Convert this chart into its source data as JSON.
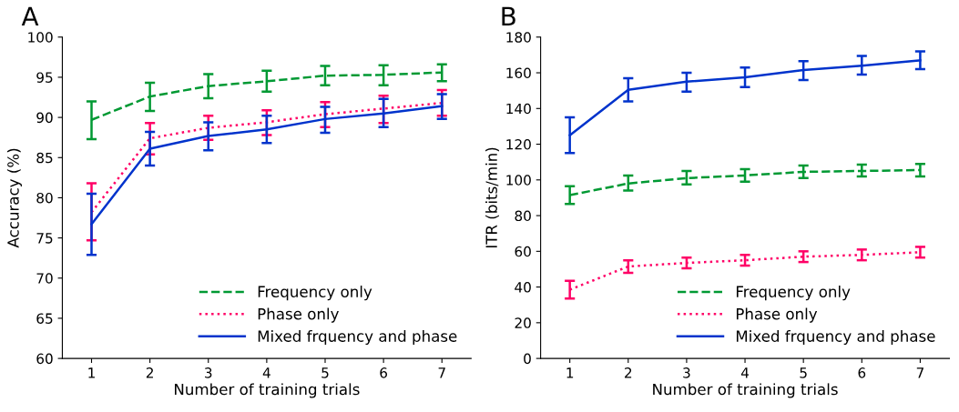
{
  "chart_data": [
    {
      "type": "line",
      "title": "A",
      "xlabel": "Number of training trials",
      "ylabel": "Accuracy (%)",
      "x": [
        1,
        2,
        3,
        4,
        5,
        6,
        7
      ],
      "xlim": [
        0.5,
        7.5
      ],
      "xticks": [
        1,
        2,
        3,
        4,
        5,
        6,
        7
      ],
      "ylim": [
        60,
        100
      ],
      "yticks": [
        60,
        65,
        70,
        75,
        80,
        85,
        90,
        95,
        100
      ],
      "grid": false,
      "legend": "bottom right",
      "marker": "none",
      "series": [
        {
          "name": "Frequency only",
          "color": "#009933",
          "line_style": "dashed",
          "values": [
            89.7,
            92.6,
            93.9,
            94.5,
            95.2,
            95.3,
            95.6
          ],
          "errors": [
            [
              87.3,
              92.0
            ],
            [
              90.8,
              94.3
            ],
            [
              92.4,
              95.4
            ],
            [
              93.2,
              95.8
            ],
            [
              94.0,
              96.4
            ],
            [
              94.0,
              96.5
            ],
            [
              94.5,
              96.6
            ]
          ]
        },
        {
          "name": "Phase only",
          "color": "#ff0066",
          "line_style": "dotted",
          "values": [
            78.2,
            87.4,
            88.7,
            89.4,
            90.4,
            91.1,
            91.8
          ],
          "errors": [
            [
              74.7,
              81.8
            ],
            [
              85.4,
              89.3
            ],
            [
              87.2,
              90.2
            ],
            [
              87.8,
              90.9
            ],
            [
              88.8,
              91.9
            ],
            [
              89.3,
              92.7
            ],
            [
              90.2,
              93.4
            ]
          ]
        },
        {
          "name": "Mixed frquency and phase",
          "color": "#0033cc",
          "line_style": "solid",
          "values": [
            76.7,
            86.1,
            87.7,
            88.5,
            89.8,
            90.5,
            91.4
          ],
          "errors": [
            [
              72.9,
              80.5
            ],
            [
              84.0,
              88.2
            ],
            [
              85.9,
              89.4
            ],
            [
              86.8,
              90.2
            ],
            [
              88.1,
              91.3
            ],
            [
              88.8,
              92.3
            ],
            [
              89.8,
              92.9
            ]
          ]
        }
      ]
    },
    {
      "type": "line",
      "title": "B",
      "xlabel": "Number of training trials",
      "ylabel": "ITR (bits/min)",
      "x": [
        1,
        2,
        3,
        4,
        5,
        6,
        7
      ],
      "xlim": [
        0.5,
        7.5
      ],
      "xticks": [
        1,
        2,
        3,
        4,
        5,
        6,
        7
      ],
      "ylim": [
        0,
        180
      ],
      "yticks": [
        0,
        20,
        40,
        60,
        80,
        100,
        120,
        140,
        160,
        180
      ],
      "grid": false,
      "legend": "bottom right",
      "marker": "none",
      "series": [
        {
          "name": "Frequency only",
          "color": "#009933",
          "line_style": "dashed",
          "values": [
            91.5,
            98,
            101,
            102.5,
            104.5,
            105,
            105.5
          ],
          "errors": [
            [
              86.5,
              96.5
            ],
            [
              94,
              102.5
            ],
            [
              97.5,
              105
            ],
            [
              99,
              106
            ],
            [
              101,
              108
            ],
            [
              102,
              108.5
            ],
            [
              102,
              109
            ]
          ]
        },
        {
          "name": "Phase only",
          "color": "#ff0066",
          "line_style": "dotted",
          "values": [
            38.5,
            51.5,
            53.5,
            55,
            57,
            58,
            59.5
          ],
          "errors": [
            [
              33.5,
              43.5
            ],
            [
              48,
              55
            ],
            [
              50.5,
              56.5
            ],
            [
              52,
              58
            ],
            [
              54,
              60
            ],
            [
              55,
              61
            ],
            [
              56.5,
              62.5
            ]
          ]
        },
        {
          "name": "Mixed frquency and phase",
          "color": "#0033cc",
          "line_style": "solid",
          "values": [
            125,
            150.5,
            155,
            157.5,
            161.5,
            164,
            167
          ],
          "errors": [
            [
              115,
              135
            ],
            [
              144,
              157
            ],
            [
              149.5,
              160
            ],
            [
              152,
              163
            ],
            [
              156,
              166.5
            ],
            [
              159,
              169.5
            ],
            [
              162,
              172
            ]
          ]
        }
      ]
    }
  ]
}
